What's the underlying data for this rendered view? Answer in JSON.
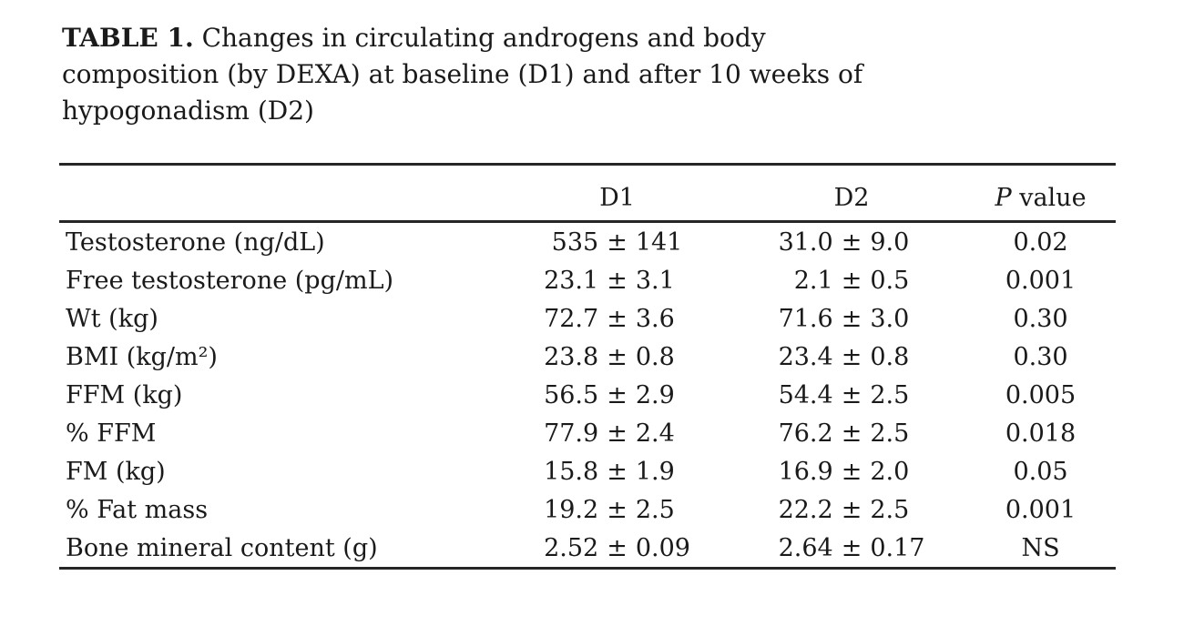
{
  "caption": {
    "label": "TABLE 1.",
    "line1_rest": " Changes in circulating androgens and body",
    "line2": "composition (by DEXA) at baseline (D1) and after 10 weeks of",
    "line3": "hypogonadism (D2)"
  },
  "table": {
    "plus_minus": "±",
    "headers": {
      "parameter": "",
      "d1": "D1",
      "d2": "D2",
      "p_italic": "P",
      "p_rest": " value"
    },
    "rows": [
      {
        "parameter": "Testosterone (ng/dL)",
        "d1_mean": "535",
        "d1_sd": "141",
        "d2_mean": "31.0",
        "d2_sd": "9.0",
        "p": "0.02"
      },
      {
        "parameter": "Free testosterone (pg/mL)",
        "d1_mean": "23.1",
        "d1_sd": "3.1",
        "d2_mean": "2.1",
        "d2_sd": "0.5",
        "p": "0.001"
      },
      {
        "parameter": "Wt (kg)",
        "d1_mean": "72.7",
        "d1_sd": "3.6",
        "d2_mean": "71.6",
        "d2_sd": "3.0",
        "p": "0.30"
      },
      {
        "parameter": "BMI (kg/m²)",
        "d1_mean": "23.8",
        "d1_sd": "0.8",
        "d2_mean": "23.4",
        "d2_sd": "0.8",
        "p": "0.30"
      },
      {
        "parameter": "FFM (kg)",
        "d1_mean": "56.5",
        "d1_sd": "2.9",
        "d2_mean": "54.4",
        "d2_sd": "2.5",
        "p": "0.005"
      },
      {
        "parameter": "% FFM",
        "d1_mean": "77.9",
        "d1_sd": "2.4",
        "d2_mean": "76.2",
        "d2_sd": "2.5",
        "p": "0.018"
      },
      {
        "parameter": "FM (kg)",
        "d1_mean": "15.8",
        "d1_sd": "1.9",
        "d2_mean": "16.9",
        "d2_sd": "2.0",
        "p": "0.05"
      },
      {
        "parameter": "% Fat mass",
        "d1_mean": "19.2",
        "d1_sd": "2.5",
        "d2_mean": "22.2",
        "d2_sd": "2.5",
        "p": "0.001"
      },
      {
        "parameter": "Bone mineral content (g)",
        "d1_mean": "2.52",
        "d1_sd": "0.09",
        "d2_mean": "2.64",
        "d2_sd": "0.17",
        "p": "NS"
      }
    ]
  },
  "colors": {
    "background": "#ffffff",
    "text": "#1a1a1a",
    "rule": "#262626"
  }
}
